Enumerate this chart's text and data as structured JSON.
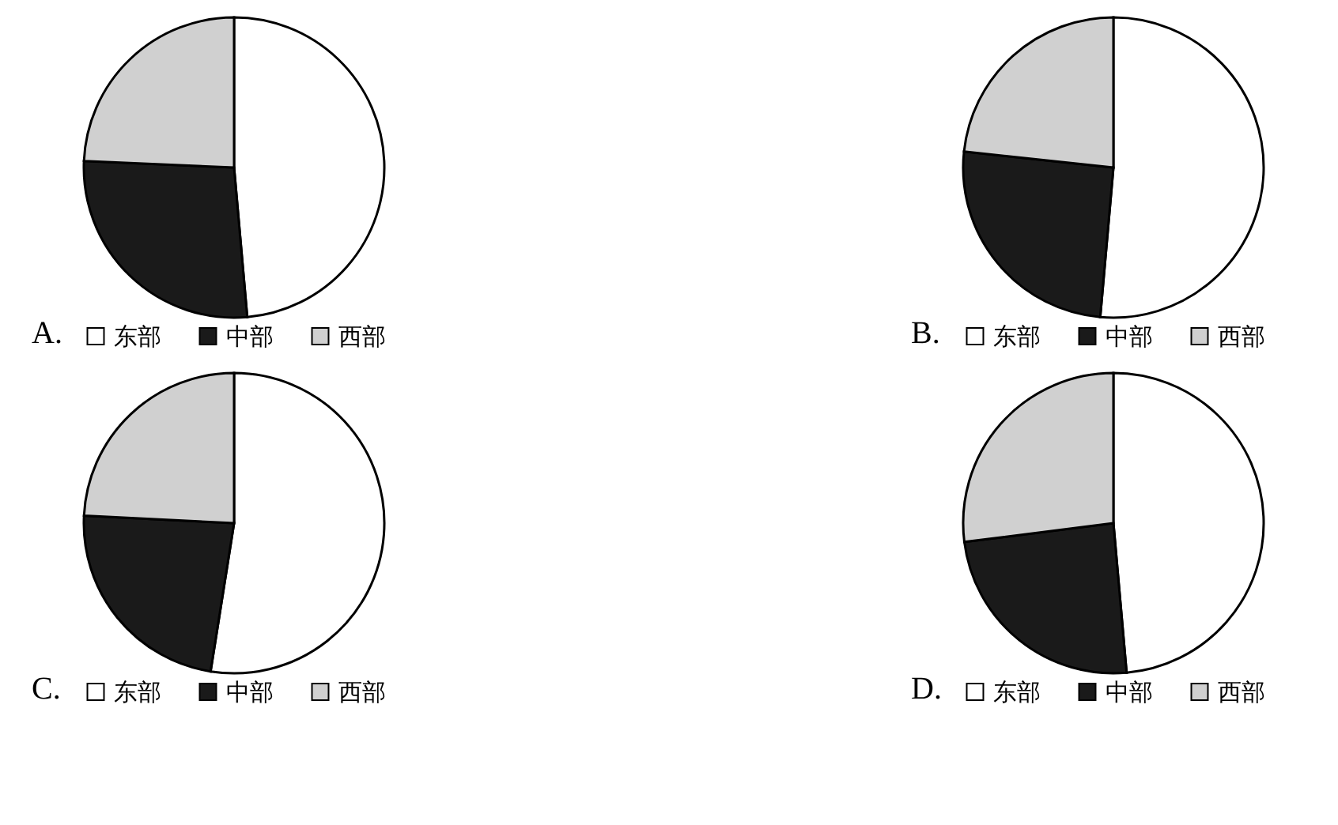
{
  "chart_data": [
    {
      "type": "pie",
      "title": "A.",
      "categories": [
        "东部",
        "中部",
        "西部"
      ],
      "values": [
        48.6,
        27.1,
        24.3
      ],
      "colors": [
        "#ffffff",
        "#1a1a1a",
        "#d0d0d0"
      ],
      "legend": "bottom"
    },
    {
      "type": "pie",
      "title": "B.",
      "categories": [
        "东部",
        "中部",
        "西部"
      ],
      "values": [
        51.4,
        25.3,
        23.3
      ],
      "colors": [
        "#ffffff",
        "#1a1a1a",
        "#d0d0d0"
      ],
      "legend": "bottom"
    },
    {
      "type": "pie",
      "title": "C.",
      "categories": [
        "东部",
        "中部",
        "西部"
      ],
      "values": [
        52.5,
        23.3,
        24.2
      ],
      "colors": [
        "#ffffff",
        "#1a1a1a",
        "#d0d0d0"
      ],
      "legend": "bottom"
    },
    {
      "type": "pie",
      "title": "D.",
      "categories": [
        "东部",
        "中部",
        "西部"
      ],
      "values": [
        48.6,
        24.4,
        27.0
      ],
      "colors": [
        "#ffffff",
        "#1a1a1a",
        "#d0d0d0"
      ],
      "legend": "bottom"
    }
  ]
}
